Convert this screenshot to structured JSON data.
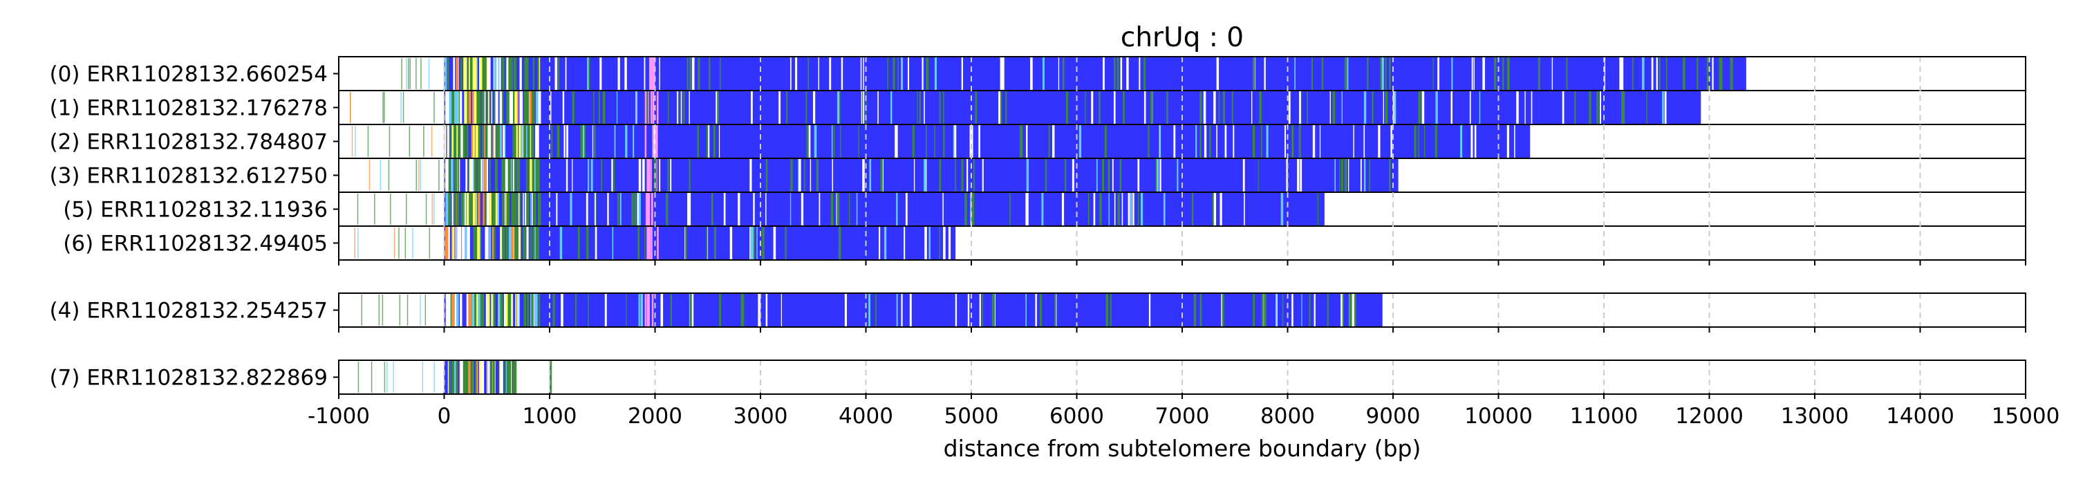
{
  "chart_data": {
    "type": "bar",
    "title": "chrUq : 0",
    "xlabel": "distance from subtelomere boundary (bp)",
    "xlim": [
      -1000,
      15000
    ],
    "xticks": [
      -1000,
      0,
      1000,
      2000,
      3000,
      4000,
      5000,
      6000,
      7000,
      8000,
      9000,
      10000,
      11000,
      12000,
      13000,
      14000,
      15000
    ],
    "grid": "vertical dashed",
    "colors": {
      "main": "#3333ff",
      "gap": "#ffffff",
      "green": "#3a8a3a",
      "yellow": "#ffff66",
      "pink": "#ff99ff",
      "orange": "#ff8c3a",
      "cyan": "#66ccff",
      "grid": "#cccccc"
    },
    "groups": [
      {
        "reads": [
          {
            "id": "(0) ERR11028132.660254",
            "start": -1000,
            "end": 12350
          },
          {
            "id": "(1) ERR11028132.176278",
            "start": -1000,
            "end": 11920
          },
          {
            "id": "(2) ERR11028132.784807",
            "start": -1000,
            "end": 10300
          },
          {
            "id": "(3) ERR11028132.612750",
            "start": -1000,
            "end": 9050
          },
          {
            "id": "(5) ERR11028132.11936",
            "start": -1000,
            "end": 8350
          },
          {
            "id": "(6) ERR11028132.49405",
            "start": -1000,
            "end": 4850
          }
        ]
      },
      {
        "reads": [
          {
            "id": "(4) ERR11028132.254257",
            "start": -1000,
            "end": 8900
          }
        ]
      },
      {
        "reads": [
          {
            "id": "(7) ERR11028132.822869",
            "start": -1000,
            "end": 680
          }
        ]
      }
    ]
  }
}
